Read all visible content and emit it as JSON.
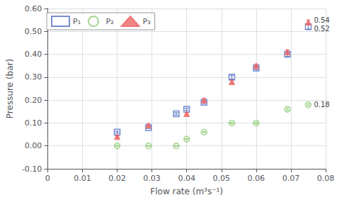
{
  "chart_data": {
    "type": "scatter",
    "xlabel": "Flow rate (m³s⁻¹)",
    "ylabel": "Pressure (bar)",
    "xlim": [
      0,
      0.08
    ],
    "xticks": [
      0,
      0.01,
      0.02,
      0.03,
      0.04,
      0.05,
      0.06,
      0.07,
      0.08
    ],
    "ylim": [
      -0.1,
      0.6
    ],
    "yticks": [
      {
        "value": -0.1,
        "label": "-0.10"
      },
      {
        "value": 0.0,
        "label": "0.00"
      },
      {
        "value": 0.1,
        "label": "0.10"
      },
      {
        "value": 0.2,
        "label": "0.20"
      },
      {
        "value": 0.3,
        "label": "0.30"
      },
      {
        "value": 0.4,
        "label": "0.40"
      },
      {
        "value": 0.5,
        "label": "0.50"
      },
      {
        "value": 0.6,
        "label": "0.60"
      }
    ],
    "grid": true,
    "legend": "upper left",
    "series": [
      {
        "name": "P₁",
        "marker": "square-open",
        "x": [
          0.02,
          0.029,
          0.037,
          0.04,
          0.045,
          0.053,
          0.06,
          0.069,
          0.075
        ],
        "values": [
          0.06,
          0.08,
          0.14,
          0.16,
          0.19,
          0.3,
          0.34,
          0.4,
          0.52
        ],
        "yerr": [
          0.004,
          0.004,
          0.005,
          0.005,
          0.005,
          0.008,
          0.007,
          0.01,
          0.01
        ]
      },
      {
        "name": "P₂",
        "marker": "circle-open",
        "x": [
          0.02,
          0.029,
          0.037,
          0.04,
          0.045,
          0.053,
          0.06,
          0.069,
          0.075
        ],
        "values": [
          0.0,
          0.0,
          0.0,
          0.03,
          0.06,
          0.1,
          0.1,
          0.16,
          0.18
        ],
        "yerr": [
          0.002,
          0.002,
          0.002,
          0.002,
          0.002,
          0.003,
          0.003,
          0.005,
          0.004
        ]
      },
      {
        "name": "P₃",
        "marker": "triangle",
        "x": [
          0.02,
          0.029,
          0.04,
          0.045,
          0.053,
          0.06,
          0.069,
          0.075
        ],
        "values": [
          0.04,
          0.09,
          0.14,
          0.2,
          0.28,
          0.35,
          0.41,
          0.54
        ],
        "yerr": [
          0.004,
          0.005,
          0.005,
          0.007,
          0.007,
          0.007,
          0.01,
          0.01
        ]
      }
    ],
    "annotations": [
      {
        "x": 0.075,
        "y": 0.54,
        "text": "0.54"
      },
      {
        "x": 0.075,
        "y": 0.52,
        "text": "0.52"
      },
      {
        "x": 0.075,
        "y": 0.18,
        "text": "0.18"
      }
    ]
  }
}
